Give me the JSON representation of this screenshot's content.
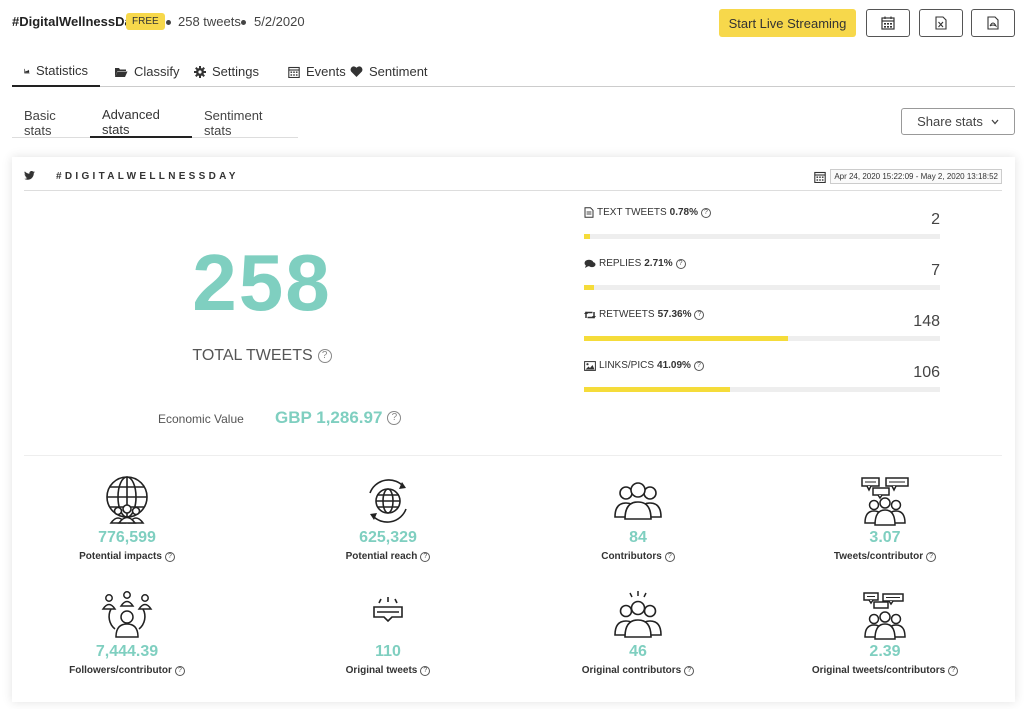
{
  "header": {
    "title": "#DigitalWellnessDay",
    "badge": "FREE",
    "tweet_count": "258 tweets",
    "date": "5/2/2020",
    "stream_button": "Start Live Streaming"
  },
  "tabs": [
    {
      "label": "Statistics",
      "icon": "chart-area-icon",
      "active": true
    },
    {
      "label": "Classify",
      "icon": "folder-open-icon"
    },
    {
      "label": "Settings",
      "icon": "gear-icon"
    },
    {
      "label": "Events",
      "icon": "calendar-icon"
    },
    {
      "label": "Sentiment",
      "icon": "heart-icon"
    }
  ],
  "subtabs": [
    {
      "label": "Basic stats"
    },
    {
      "label": "Advanced stats",
      "active": true
    },
    {
      "label": "Sentiment stats"
    }
  ],
  "share_button": "Share stats",
  "card": {
    "hashtag": "#DIGITALWELLNESSDAY",
    "date_range": "Apr 24, 2020 15:22:09 - May 2, 2020 13:18:52",
    "total": "258",
    "total_label": "TOTAL TWEETS",
    "economic_label": "Economic Value",
    "economic_value": "GBP 1,286.97",
    "breakdown": [
      {
        "label": "TEXT TWEETS",
        "pct": "0.78%",
        "value": "2",
        "fraction": 0.0078,
        "icon": "document-icon"
      },
      {
        "label": "REPLIES",
        "pct": "2.71%",
        "value": "7",
        "fraction": 0.0271,
        "icon": "comments-icon"
      },
      {
        "label": "RETWEETS",
        "pct": "57.36%",
        "value": "148",
        "fraction": 0.5736,
        "icon": "retweet-icon"
      },
      {
        "label": "LINKS/PICS",
        "pct": "41.09%",
        "value": "106",
        "fraction": 0.4109,
        "icon": "image-icon"
      }
    ],
    "stats": [
      {
        "value": "776,599",
        "label": "Potential impacts",
        "icon": "globe-people-icon"
      },
      {
        "value": "625,329",
        "label": "Potential reach",
        "icon": "globe-arrows-icon"
      },
      {
        "value": "84",
        "label": "Contributors",
        "icon": "group-icon"
      },
      {
        "value": "3.07",
        "label": "Tweets/contributor",
        "icon": "group-chat-icon"
      },
      {
        "value": "7,444.39",
        "label": "Followers/contributor",
        "icon": "network-people-icon"
      },
      {
        "value": "110",
        "label": "Original tweets",
        "icon": "message-box-icon"
      },
      {
        "value": "46",
        "label": "Original contributors",
        "icon": "group-shine-icon"
      },
      {
        "value": "2.39",
        "label": "Original tweets/contributors",
        "icon": "group-chat-icon"
      }
    ]
  },
  "colors": {
    "accent": "#f7d84b",
    "teal": "#7fcfc0",
    "bar": "#f5dc3a"
  }
}
